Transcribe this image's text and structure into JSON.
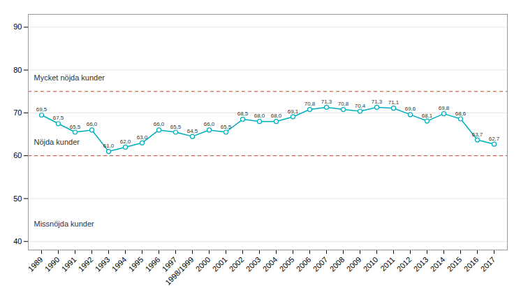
{
  "chart_data": {
    "type": "line",
    "categories": [
      "1989",
      "1990",
      "1991",
      "1992",
      "1993",
      "1994",
      "1995",
      "1996",
      "1997",
      "1998/1999",
      "2000",
      "2001",
      "2002",
      "2003",
      "2004",
      "2005",
      "2006",
      "2007",
      "2008",
      "2009",
      "2010",
      "2011",
      "2012",
      "2013",
      "2014",
      "2015",
      "2016",
      "2017"
    ],
    "values": [
      69.5,
      67.5,
      65.5,
      66.0,
      61.0,
      62.0,
      63.0,
      66.0,
      65.5,
      64.5,
      66.0,
      65.5,
      68.5,
      68.0,
      68.0,
      69.1,
      70.8,
      71.3,
      70.8,
      70.4,
      71.3,
      71.1,
      69.6,
      68.1,
      69.8,
      68.6,
      63.7,
      62.7
    ],
    "value_labels": [
      "69,5",
      "67,5",
      "65,5",
      "66,0",
      "61,0",
      "62,0",
      "63,0",
      "66,0",
      "65,5",
      "64,5",
      "66,0",
      "65,5",
      "68,5",
      "68,0",
      "68,0",
      "69,1",
      "70,8",
      "71,3",
      "70,8",
      "70,4",
      "71,3",
      "71,1",
      "69,6",
      "68,1",
      "69,8",
      "68,6",
      "63,7",
      "62,7"
    ],
    "data_labels": true,
    "color": "#00AEBD",
    "marker": "circle",
    "ylim": [
      38,
      93
    ],
    "yticks": [
      40,
      50,
      60,
      70,
      80,
      90
    ],
    "grid": true,
    "reference_lines": [
      {
        "y": 75,
        "color": "#CC4433",
        "line_style": "dashed"
      },
      {
        "y": 60,
        "color": "#CC4433",
        "line_style": "dashed"
      }
    ],
    "annotations": [
      {
        "text": "Mycket nöjda kunder",
        "y": 77.5
      },
      {
        "text": "Nöjda kunder",
        "y": 62.5
      },
      {
        "text": "Missnöjda kunder",
        "y": 43.5
      }
    ]
  }
}
